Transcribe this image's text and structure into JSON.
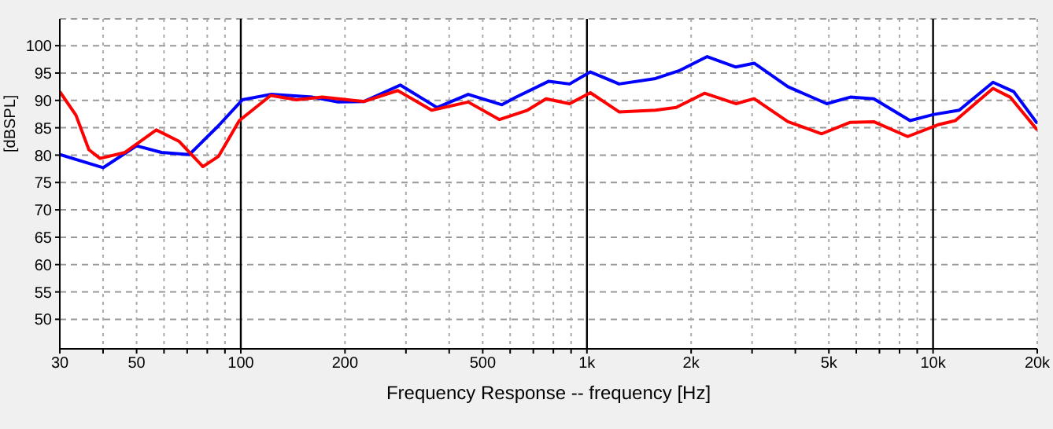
{
  "chart_data": {
    "type": "line",
    "xlabel": "Frequency Response -- frequency [Hz]",
    "ylabel": "[dBSPL]",
    "log": "x",
    "grid": true,
    "xlim": [
      30,
      20000
    ],
    "ylim": [
      44.6,
      104.9
    ],
    "xticks": [
      30,
      {
        "value": 40,
        "label": null
      },
      50,
      {
        "value": 60,
        "label": null
      },
      {
        "value": 70,
        "label": null
      },
      {
        "value": 80,
        "label": null
      },
      {
        "value": 90,
        "label": null
      },
      100,
      200,
      {
        "value": 300,
        "label": null
      },
      {
        "value": 400,
        "label": null
      },
      500,
      {
        "value": 600,
        "label": null
      },
      {
        "value": 700,
        "label": null
      },
      {
        "value": 800,
        "label": null
      },
      {
        "value": 900,
        "label": null
      },
      {
        "value": 1000,
        "label": "1k"
      },
      {
        "value": 2000,
        "label": "2k"
      },
      {
        "value": 3000,
        "label": null
      },
      {
        "value": 4000,
        "label": null
      },
      {
        "value": 5000,
        "label": "5k"
      },
      {
        "value": 6000,
        "label": null
      },
      {
        "value": 7000,
        "label": null
      },
      {
        "value": 8000,
        "label": null
      },
      {
        "value": 9000,
        "label": null
      },
      {
        "value": 10000,
        "label": "10k"
      },
      {
        "value": 20000,
        "label": "20k"
      }
    ],
    "yticks": [
      50,
      55,
      60,
      65,
      70,
      75,
      80,
      85,
      90,
      95,
      100
    ],
    "series": [
      {
        "color": "#0000ff",
        "x": [
          30,
          40,
          50,
          59,
          71,
          86,
          101,
          122,
          161,
          191,
          227,
          289,
          369,
          454,
          568,
          620,
          776,
          891,
          1023,
          1239,
          1578,
          1842,
          2226,
          2693,
          3042,
          3808,
          4933,
          5767,
          6741,
          8583,
          10000,
          11900,
          14900,
          17100,
          20000
        ],
        "values": [
          80.1,
          77.7,
          81.7,
          80.5,
          80.1,
          85.3,
          90.1,
          91.1,
          90.6,
          89.7,
          89.8,
          92.8,
          88.7,
          91.1,
          89.2,
          90.5,
          93.5,
          93.0,
          95.2,
          93.0,
          94.0,
          95.4,
          98.0,
          96.1,
          96.8,
          92.5,
          89.4,
          90.6,
          90.3,
          86.3,
          87.4,
          88.2,
          93.3,
          91.6,
          85.8
        ]
      },
      {
        "color": "#ff0000",
        "x": [
          30,
          33.4,
          36.4,
          39.2,
          46.3,
          57,
          66.4,
          77.7,
          86.3,
          99,
          122,
          145,
          172,
          227,
          284,
          356,
          454,
          559,
          673,
          762,
          891,
          1023,
          1239,
          1578,
          1810,
          2186,
          2693,
          3042,
          3808,
          4768,
          5767,
          6741,
          8446,
          10400,
          11600,
          14900,
          16700,
          20000
        ],
        "values": [
          91.6,
          87.3,
          81.0,
          79.4,
          80.5,
          84.6,
          82.5,
          77.9,
          79.8,
          86.3,
          90.9,
          90.1,
          90.6,
          89.8,
          91.8,
          88.2,
          89.7,
          86.5,
          88.2,
          90.3,
          89.4,
          91.4,
          87.9,
          88.2,
          88.7,
          91.3,
          89.4,
          90.3,
          86.1,
          83.9,
          86.0,
          86.1,
          83.4,
          85.6,
          86.3,
          92.2,
          90.6,
          84.6
        ]
      }
    ]
  }
}
